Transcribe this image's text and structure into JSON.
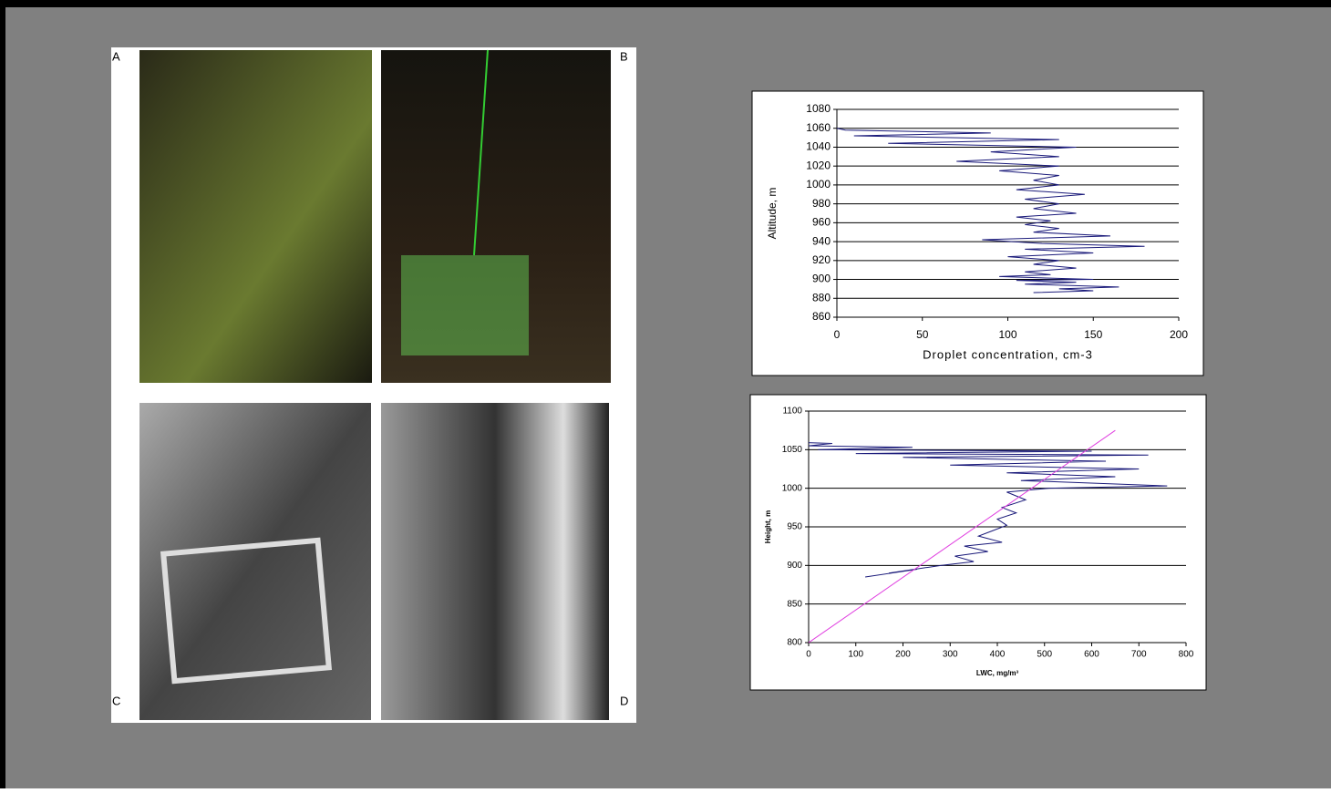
{
  "photos": {
    "labels": [
      "A",
      "B",
      "C",
      "D"
    ]
  },
  "chart_data": [
    {
      "type": "line",
      "xlabel": "Droplet concentration, cm-3",
      "ylabel": "Altitude, m",
      "xlim": [
        0,
        200
      ],
      "xticks": [
        0,
        50,
        100,
        150,
        200
      ],
      "ylim": [
        860,
        1080
      ],
      "yticks": [
        860,
        880,
        900,
        920,
        940,
        960,
        980,
        1000,
        1020,
        1040,
        1060,
        1080
      ],
      "grid": true,
      "series": [
        {
          "color": "#1a1a7a",
          "x": [
            115,
            150,
            130,
            165,
            110,
            140,
            105,
            150,
            95,
            125,
            110,
            140,
            115,
            130,
            100,
            150,
            110,
            180,
            120,
            85,
            160,
            115,
            130,
            110,
            125,
            105,
            140,
            115,
            130,
            110,
            145,
            105,
            130,
            115,
            130,
            95,
            130,
            70,
            130,
            90,
            140,
            30,
            130,
            10,
            90,
            5,
            0
          ],
          "values": [
            886,
            888,
            890,
            892,
            895,
            897,
            899,
            900,
            903,
            905,
            908,
            912,
            916,
            920,
            924,
            928,
            932,
            935,
            938,
            942,
            946,
            950,
            954,
            958,
            962,
            966,
            970,
            975,
            980,
            985,
            990,
            995,
            1000,
            1005,
            1010,
            1015,
            1020,
            1025,
            1030,
            1035,
            1040,
            1044,
            1048,
            1052,
            1055,
            1058,
            1060
          ]
        }
      ]
    },
    {
      "type": "line",
      "xlabel": "LWC, mg/m³",
      "ylabel": "Height, m",
      "xlim": [
        0,
        800
      ],
      "xticks": [
        0,
        100,
        200,
        300,
        400,
        500,
        600,
        700,
        800
      ],
      "ylim": [
        800,
        1100
      ],
      "yticks": [
        800,
        850,
        900,
        950,
        1000,
        1050,
        1100
      ],
      "grid": true,
      "series": [
        {
          "color": "#1a1a7a",
          "x": [
            120,
            230,
            170,
            280,
            350,
            310,
            380,
            330,
            410,
            360,
            390,
            420,
            400,
            440,
            410,
            460,
            420,
            510,
            760,
            450,
            650,
            420,
            700,
            300,
            630,
            200,
            720,
            100,
            600,
            20,
            220,
            0,
            50,
            0
          ],
          "values": [
            885,
            895,
            890,
            900,
            905,
            912,
            918,
            925,
            930,
            938,
            945,
            952,
            960,
            968,
            975,
            985,
            995,
            1000,
            1003,
            1010,
            1015,
            1020,
            1025,
            1030,
            1035,
            1040,
            1043,
            1045,
            1048,
            1050,
            1053,
            1055,
            1058,
            1059
          ]
        },
        {
          "color": "#e040e0",
          "x": [
            0,
            650
          ],
          "values": [
            800,
            1075
          ]
        }
      ]
    }
  ]
}
